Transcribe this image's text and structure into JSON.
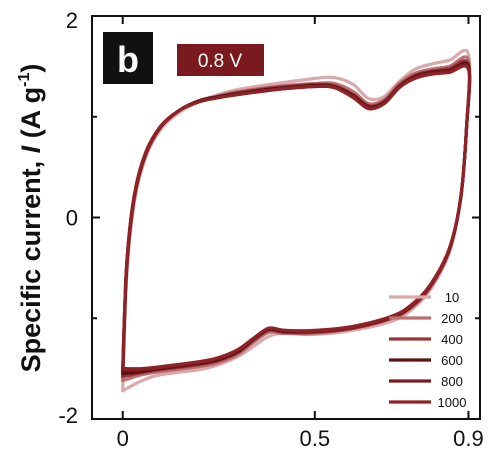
{
  "chart_data": {
    "type": "line",
    "title": "",
    "panel_label": "b",
    "voltage_badge": "0.8 V",
    "xlabel": "",
    "ylabel_prefix": "Specific current, ",
    "ylabel_symbol": "I",
    "ylabel_unit_open": " (A g",
    "ylabel_unit_sup": "-1",
    "ylabel_unit_close": ")",
    "xlim": [
      -0.08,
      0.93
    ],
    "ylim": [
      -2,
      2
    ],
    "x_ticks": [
      0,
      0.5,
      0.9
    ],
    "x_tick_labels": [
      "0",
      "0.5",
      "0.9"
    ],
    "y_ticks": [
      -2,
      0,
      2
    ],
    "y_tick_labels": [
      "-2",
      "0",
      "2"
    ],
    "grid": false,
    "legend_position": "bottom-right",
    "legend_title": "",
    "series": [
      {
        "name": "10",
        "color": "#d9a9ab",
        "upper": [
          [
            0,
            -1.72
          ],
          [
            0.01,
            -0.6
          ],
          [
            0.03,
            0.15
          ],
          [
            0.06,
            0.6
          ],
          [
            0.1,
            0.88
          ],
          [
            0.15,
            1.05
          ],
          [
            0.2,
            1.15
          ],
          [
            0.25,
            1.22
          ],
          [
            0.3,
            1.27
          ],
          [
            0.4,
            1.33
          ],
          [
            0.5,
            1.38
          ],
          [
            0.55,
            1.39
          ],
          [
            0.6,
            1.32
          ],
          [
            0.64,
            1.18
          ],
          [
            0.68,
            1.2
          ],
          [
            0.72,
            1.35
          ],
          [
            0.76,
            1.47
          ],
          [
            0.8,
            1.52
          ],
          [
            0.85,
            1.56
          ],
          [
            0.9,
            1.62
          ]
        ],
        "lower": [
          [
            0.9,
            1.62
          ],
          [
            0.895,
            0.9
          ],
          [
            0.88,
            0.2
          ],
          [
            0.85,
            -0.35
          ],
          [
            0.8,
            -0.72
          ],
          [
            0.75,
            -0.92
          ],
          [
            0.7,
            -1.03
          ],
          [
            0.6,
            -1.12
          ],
          [
            0.5,
            -1.16
          ],
          [
            0.42,
            -1.15
          ],
          [
            0.38,
            -1.18
          ],
          [
            0.34,
            -1.28
          ],
          [
            0.3,
            -1.38
          ],
          [
            0.25,
            -1.46
          ],
          [
            0.2,
            -1.51
          ],
          [
            0.1,
            -1.56
          ],
          [
            0.05,
            -1.62
          ],
          [
            0,
            -1.72
          ]
        ]
      },
      {
        "name": "200",
        "color": "#bb6f72",
        "upper": [
          [
            0,
            -1.62
          ],
          [
            0.01,
            -0.55
          ],
          [
            0.03,
            0.18
          ],
          [
            0.06,
            0.62
          ],
          [
            0.1,
            0.9
          ],
          [
            0.15,
            1.07
          ],
          [
            0.2,
            1.16
          ],
          [
            0.25,
            1.21
          ],
          [
            0.3,
            1.25
          ],
          [
            0.4,
            1.3
          ],
          [
            0.5,
            1.33
          ],
          [
            0.55,
            1.33
          ],
          [
            0.6,
            1.25
          ],
          [
            0.64,
            1.13
          ],
          [
            0.68,
            1.17
          ],
          [
            0.72,
            1.33
          ],
          [
            0.76,
            1.43
          ],
          [
            0.8,
            1.47
          ],
          [
            0.85,
            1.5
          ],
          [
            0.9,
            1.56
          ]
        ],
        "lower": [
          [
            0.9,
            1.56
          ],
          [
            0.895,
            0.9
          ],
          [
            0.88,
            0.2
          ],
          [
            0.85,
            -0.33
          ],
          [
            0.8,
            -0.7
          ],
          [
            0.75,
            -0.9
          ],
          [
            0.7,
            -1.0
          ],
          [
            0.6,
            -1.1
          ],
          [
            0.5,
            -1.15
          ],
          [
            0.42,
            -1.15
          ],
          [
            0.38,
            -1.14
          ],
          [
            0.34,
            -1.24
          ],
          [
            0.3,
            -1.36
          ],
          [
            0.25,
            -1.44
          ],
          [
            0.2,
            -1.48
          ],
          [
            0.1,
            -1.53
          ],
          [
            0.05,
            -1.56
          ],
          [
            0,
            -1.62
          ]
        ]
      },
      {
        "name": "400",
        "color": "#9a3438",
        "upper": [
          [
            0,
            -1.58
          ],
          [
            0.01,
            -0.52
          ],
          [
            0.03,
            0.2
          ],
          [
            0.06,
            0.63
          ],
          [
            0.1,
            0.9
          ],
          [
            0.15,
            1.07
          ],
          [
            0.2,
            1.16
          ],
          [
            0.25,
            1.2
          ],
          [
            0.3,
            1.24
          ],
          [
            0.4,
            1.29
          ],
          [
            0.5,
            1.32
          ],
          [
            0.55,
            1.31
          ],
          [
            0.6,
            1.22
          ],
          [
            0.64,
            1.11
          ],
          [
            0.68,
            1.15
          ],
          [
            0.72,
            1.31
          ],
          [
            0.76,
            1.41
          ],
          [
            0.8,
            1.45
          ],
          [
            0.85,
            1.48
          ],
          [
            0.9,
            1.52
          ]
        ],
        "lower": [
          [
            0.9,
            1.52
          ],
          [
            0.895,
            0.9
          ],
          [
            0.88,
            0.2
          ],
          [
            0.85,
            -0.32
          ],
          [
            0.8,
            -0.69
          ],
          [
            0.75,
            -0.89
          ],
          [
            0.7,
            -1.0
          ],
          [
            0.6,
            -1.1
          ],
          [
            0.5,
            -1.14
          ],
          [
            0.42,
            -1.14
          ],
          [
            0.38,
            -1.12
          ],
          [
            0.34,
            -1.22
          ],
          [
            0.3,
            -1.34
          ],
          [
            0.25,
            -1.42
          ],
          [
            0.2,
            -1.46
          ],
          [
            0.1,
            -1.51
          ],
          [
            0.05,
            -1.54
          ],
          [
            0,
            -1.58
          ]
        ]
      },
      {
        "name": "600",
        "color": "#5a1216",
        "upper": [
          [
            0,
            -1.55
          ],
          [
            0.01,
            -0.5
          ],
          [
            0.03,
            0.21
          ],
          [
            0.06,
            0.64
          ],
          [
            0.1,
            0.91
          ],
          [
            0.15,
            1.07
          ],
          [
            0.2,
            1.16
          ],
          [
            0.25,
            1.2
          ],
          [
            0.3,
            1.23
          ],
          [
            0.4,
            1.28
          ],
          [
            0.5,
            1.31
          ],
          [
            0.55,
            1.3
          ],
          [
            0.6,
            1.21
          ],
          [
            0.64,
            1.1
          ],
          [
            0.68,
            1.14
          ],
          [
            0.72,
            1.3
          ],
          [
            0.76,
            1.4
          ],
          [
            0.8,
            1.44
          ],
          [
            0.85,
            1.46
          ],
          [
            0.9,
            1.5
          ]
        ],
        "lower": [
          [
            0.9,
            1.5
          ],
          [
            0.895,
            0.9
          ],
          [
            0.88,
            0.2
          ],
          [
            0.85,
            -0.32
          ],
          [
            0.8,
            -0.68
          ],
          [
            0.75,
            -0.88
          ],
          [
            0.7,
            -0.99
          ],
          [
            0.6,
            -1.09
          ],
          [
            0.5,
            -1.13
          ],
          [
            0.42,
            -1.13
          ],
          [
            0.38,
            -1.11
          ],
          [
            0.34,
            -1.21
          ],
          [
            0.3,
            -1.33
          ],
          [
            0.25,
            -1.41
          ],
          [
            0.2,
            -1.45
          ],
          [
            0.1,
            -1.5
          ],
          [
            0.05,
            -1.53
          ],
          [
            0,
            -1.55
          ]
        ]
      },
      {
        "name": "800",
        "color": "#7a1b1f",
        "upper": [
          [
            0,
            -1.52
          ],
          [
            0.01,
            -0.48
          ],
          [
            0.03,
            0.22
          ],
          [
            0.06,
            0.64
          ],
          [
            0.1,
            0.91
          ],
          [
            0.15,
            1.07
          ],
          [
            0.2,
            1.15
          ],
          [
            0.25,
            1.19
          ],
          [
            0.3,
            1.22
          ],
          [
            0.4,
            1.27
          ],
          [
            0.5,
            1.3
          ],
          [
            0.55,
            1.29
          ],
          [
            0.6,
            1.2
          ],
          [
            0.64,
            1.09
          ],
          [
            0.68,
            1.13
          ],
          [
            0.72,
            1.29
          ],
          [
            0.76,
            1.39
          ],
          [
            0.8,
            1.43
          ],
          [
            0.85,
            1.45
          ],
          [
            0.9,
            1.48
          ]
        ],
        "lower": [
          [
            0.9,
            1.48
          ],
          [
            0.895,
            0.9
          ],
          [
            0.88,
            0.2
          ],
          [
            0.85,
            -0.31
          ],
          [
            0.8,
            -0.68
          ],
          [
            0.75,
            -0.88
          ],
          [
            0.7,
            -0.99
          ],
          [
            0.6,
            -1.09
          ],
          [
            0.5,
            -1.13
          ],
          [
            0.42,
            -1.12
          ],
          [
            0.38,
            -1.1
          ],
          [
            0.34,
            -1.2
          ],
          [
            0.3,
            -1.32
          ],
          [
            0.25,
            -1.4
          ],
          [
            0.2,
            -1.44
          ],
          [
            0.1,
            -1.49
          ],
          [
            0.05,
            -1.51
          ],
          [
            0,
            -1.52
          ]
        ]
      },
      {
        "name": "1000",
        "color": "#8e2226",
        "upper": [
          [
            0,
            -1.5
          ],
          [
            0.01,
            -0.47
          ],
          [
            0.03,
            0.22
          ],
          [
            0.06,
            0.65
          ],
          [
            0.1,
            0.91
          ],
          [
            0.15,
            1.07
          ],
          [
            0.2,
            1.15
          ],
          [
            0.25,
            1.19
          ],
          [
            0.3,
            1.22
          ],
          [
            0.4,
            1.27
          ],
          [
            0.5,
            1.3
          ],
          [
            0.55,
            1.29
          ],
          [
            0.6,
            1.19
          ],
          [
            0.64,
            1.08
          ],
          [
            0.68,
            1.13
          ],
          [
            0.72,
            1.29
          ],
          [
            0.76,
            1.38
          ],
          [
            0.8,
            1.42
          ],
          [
            0.85,
            1.44
          ],
          [
            0.9,
            1.47
          ]
        ],
        "lower": [
          [
            0.9,
            1.47
          ],
          [
            0.895,
            0.9
          ],
          [
            0.88,
            0.2
          ],
          [
            0.85,
            -0.31
          ],
          [
            0.8,
            -0.67
          ],
          [
            0.75,
            -0.87
          ],
          [
            0.7,
            -0.98
          ],
          [
            0.6,
            -1.08
          ],
          [
            0.5,
            -1.12
          ],
          [
            0.42,
            -1.12
          ],
          [
            0.38,
            -1.1
          ],
          [
            0.34,
            -1.2
          ],
          [
            0.3,
            -1.31
          ],
          [
            0.25,
            -1.39
          ],
          [
            0.2,
            -1.43
          ],
          [
            0.1,
            -1.48
          ],
          [
            0.05,
            -1.5
          ],
          [
            0,
            -1.5
          ]
        ]
      }
    ],
    "colors": {
      "badge_bg": "#7b1a1e",
      "panel_bg": "#111111",
      "axis": "#111111"
    }
  }
}
